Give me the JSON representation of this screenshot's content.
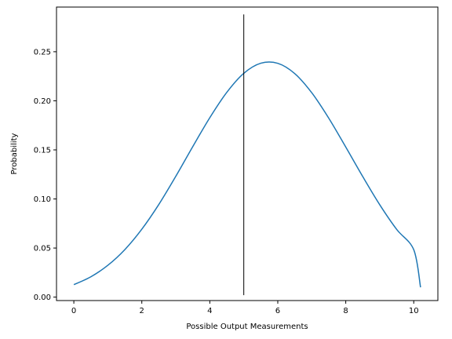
{
  "chart_data": {
    "type": "line",
    "title": "",
    "xlabel": "Possible Output Measurements",
    "ylabel": "Probability",
    "xlim": [
      -0.51,
      10.71
    ],
    "ylim": [
      -0.0035,
      0.2955
    ],
    "xticks": [
      0,
      2,
      4,
      6,
      8,
      10
    ],
    "xtick_labels": [
      "0",
      "2",
      "4",
      "6",
      "8",
      "10"
    ],
    "yticks": [
      0.0,
      0.05,
      0.1,
      0.15,
      0.2,
      0.25
    ],
    "ytick_labels": [
      "0.00",
      "0.05",
      "0.10",
      "0.15",
      "0.20",
      "0.25"
    ],
    "grid": false,
    "series": [
      {
        "color": "#1f77b4",
        "x": [
          0.0,
          0.5,
          1.0,
          1.5,
          2.0,
          2.5,
          3.0,
          3.5,
          4.0,
          4.5,
          5.0,
          5.5,
          6.0,
          6.5,
          7.0,
          7.5,
          8.0,
          8.5,
          9.0,
          9.5,
          10.0,
          10.2
        ],
        "y": [
          0.0127,
          0.0207,
          0.0324,
          0.0484,
          0.0692,
          0.0944,
          0.1231,
          0.1534,
          0.1828,
          0.2086,
          0.228,
          0.2383,
          0.2382,
          0.2277,
          0.2082,
          0.1823,
          0.1529,
          0.1228,
          0.0941,
          0.0689,
          0.0483,
          0.01
        ]
      }
    ],
    "vline": {
      "x": 5.0,
      "ymin": 0.002,
      "ymax": 0.288,
      "color": "#000000"
    }
  }
}
